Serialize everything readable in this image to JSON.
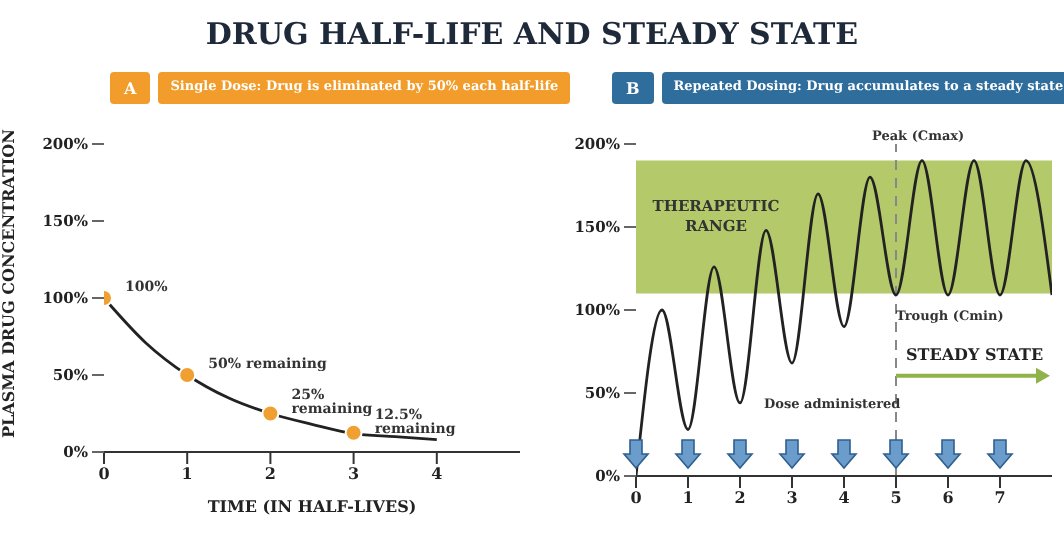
{
  "chart_data": [
    {
      "type": "line",
      "title": "A",
      "subtitle": "Single Dose: Drug is eliminated by 50% each half-life",
      "xlabel": "TIME (IN HALF-LIVES)",
      "ylabel": "PLASMA DRUG CONCENTRATION",
      "annotations": [
        "DRUG HALF-LIFE AND STEADY STATE"
      ],
      "xlim": [
        0,
        5
      ],
      "xticks": [
        0,
        1,
        2,
        3,
        4
      ],
      "ylim": [
        0,
        200
      ],
      "yticks": [
        {
          "value": 0,
          "label": "0%"
        },
        {
          "value": 50,
          "label": "50%"
        },
        {
          "value": 100,
          "label": "100%"
        },
        {
          "value": 150,
          "label": "150%"
        },
        {
          "value": 200,
          "label": "200%"
        }
      ],
      "series": [
        {
          "type": "line",
          "color": "#222222",
          "marker": "none",
          "x": [
            0,
            0.5,
            1,
            1.5,
            2,
            2.5,
            3,
            3.5,
            4
          ],
          "values": [
            100,
            71,
            50,
            35,
            25,
            18,
            12,
            10,
            8
          ]
        },
        {
          "type": "scatter",
          "color": "#f0a030",
          "marker": "circle",
          "x": [
            0,
            1,
            2,
            3
          ],
          "values": [
            100,
            50,
            25,
            12.5
          ],
          "value_labels": [
            "100%",
            "50% remaining",
            "25% remaining",
            "12.5% remaining"
          ]
        }
      ]
    },
    {
      "type": "line",
      "title": "B",
      "subtitle": "Repeated Dosing: Drug accumulates to a steady state",
      "annotations": [
        "Peak (Cmax)",
        "Trough (Cmin)",
        "Dose administered",
        {
          "text": "STEADY STATE",
          "x": 5,
          "y": 70
        }
      ],
      "xlim": [
        0,
        8
      ],
      "xticks": [
        0,
        1,
        2,
        3,
        4,
        5,
        6,
        7
      ],
      "ylim": [
        0,
        200
      ],
      "yticks": [
        {
          "value": 0,
          "label": "0%"
        },
        {
          "value": 50,
          "label": "50%"
        },
        {
          "value": 100,
          "label": "100%"
        },
        {
          "value": 150,
          "label": "150%"
        },
        {
          "value": 200,
          "label": "200%"
        }
      ],
      "bands": [
        {
          "axis": "y",
          "from": 110,
          "to": 190,
          "label": "THERAPEUTIC RANGE",
          "color": "#b3c96a"
        }
      ],
      "ref_lines": [
        {
          "axis": "x",
          "value": 5,
          "line_style": "dashed",
          "color": "#888888"
        }
      ],
      "series": [
        {
          "type": "line",
          "color": "#222222",
          "marker": "none",
          "x": [
            0,
            0.5,
            1,
            1.5,
            2,
            2.5,
            3,
            3.5,
            4,
            4.5,
            5,
            5.5,
            6,
            6.5,
            7,
            7.5,
            8
          ],
          "values": [
            0,
            100,
            28,
            126,
            44,
            148,
            68,
            170,
            90,
            180,
            109,
            190,
            109,
            190,
            109,
            190,
            109
          ]
        }
      ]
    }
  ]
}
